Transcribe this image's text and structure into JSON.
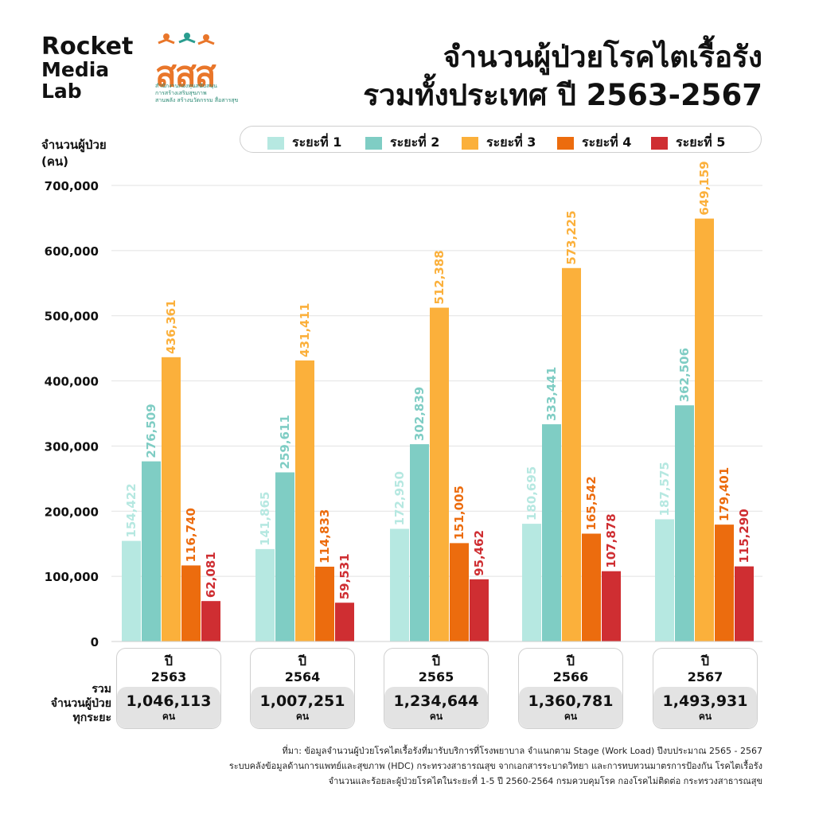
{
  "brand": {
    "line1": "Rocket",
    "line2": "Media",
    "line3": "Lab"
  },
  "partner_logo": {
    "text": "สสส",
    "sub1": "สำนักงานกองทุนสนับสนุน",
    "sub2": "การสร้างเสริมสุขภาพ",
    "sub3": "สานพลัง สร้างนวัตกรรม สื่อสารสุข"
  },
  "title": {
    "line1": "จำนวนผู้ป่วยโรคไตเรื้อรัง",
    "line2": "รวมทั้งประเทศ ปี 2563-2567"
  },
  "ylabel": {
    "line1": "จำนวนผู้ป่วย",
    "line2": "(คน)"
  },
  "totals_label": {
    "line1": "รวม",
    "line2": "จำนวนผู้ป่วย",
    "line3": "ทุกระยะ"
  },
  "year_prefix": "ปี",
  "unit": "คน",
  "chart_data": {
    "type": "bar",
    "categories": [
      "2563",
      "2564",
      "2565",
      "2566",
      "2567"
    ],
    "series": [
      {
        "name": "ระยะที่ 1",
        "color": "#b6e8e1",
        "values": [
          154422,
          141865,
          172950,
          180695,
          187575
        ]
      },
      {
        "name": "ระยะที่ 2",
        "color": "#7fcdc4",
        "values": [
          276509,
          259611,
          302839,
          333441,
          362506
        ]
      },
      {
        "name": "ระยะที่ 3",
        "color": "#fbb03b",
        "values": [
          436361,
          431411,
          512388,
          573225,
          649159
        ]
      },
      {
        "name": "ระยะที่ 4",
        "color": "#ec6c0e",
        "values": [
          116740,
          114833,
          151005,
          165542,
          179401
        ]
      },
      {
        "name": "ระยะที่ 5",
        "color": "#cf2e32",
        "values": [
          62081,
          59531,
          95462,
          107878,
          115290
        ]
      }
    ],
    "totals": [
      "1,046,113",
      "1,007,251",
      "1,234,644",
      "1,360,781",
      "1,493,931"
    ],
    "ylim": [
      0,
      700000
    ],
    "yticks": [
      "0",
      "100,000",
      "200,000",
      "300,000",
      "400,000",
      "500,000",
      "600,000",
      "700,000"
    ],
    "grid": true,
    "legend": "top"
  },
  "source": {
    "line1": "ที่มา: ข้อมูลจำนวนผู้ป่วยโรคไตเรื้อรังที่มารับบริการที่โรงพยาบาล จำแนกตาม Stage (Work Load) ปีงบประมาณ 2565 - 2567",
    "line2": "ระบบคลังข้อมูลด้านการแพทย์และสุขภาพ (HDC) กระทรวงสาธารณสุข จากเอกสารระบาดวิทยา และการทบทวนมาตรการป้องกัน โรคไตเรื้อรัง",
    "line3": "จำนวนและร้อยละผู้ป่วยโรคไตในระยะที่ 1-5 ปี 2560-2564 กรมควบคุมโรค กองโรคไม่ติดต่อ กระทรวงสาธารณสุข"
  }
}
